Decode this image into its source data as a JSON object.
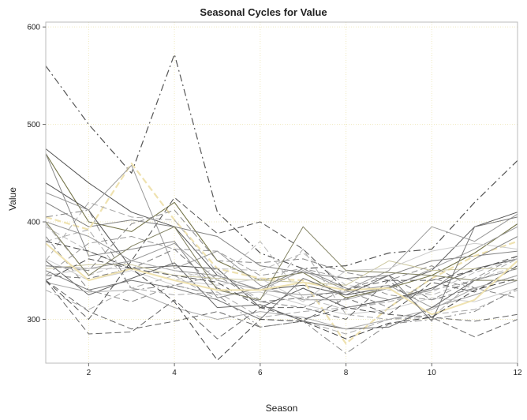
{
  "chart_data": {
    "type": "line",
    "title": "Seasonal Cycles for Value",
    "xlabel": "Season",
    "ylabel": "Value",
    "xlim": [
      1,
      12
    ],
    "ylim": [
      255,
      605
    ],
    "x_ticks": [
      2,
      4,
      6,
      8,
      10,
      12
    ],
    "y_ticks": [
      300,
      400,
      500,
      600
    ],
    "grid": true,
    "x": [
      1,
      2,
      3,
      4,
      5,
      6,
      7,
      8,
      9,
      10,
      11,
      12
    ],
    "colors": {
      "grid": "#efe9c0",
      "frame": "#bbbbbb",
      "highlight": "#efe2b0"
    },
    "series": [
      {
        "values": [
          560,
          500,
          450,
          572,
          410,
          368,
          352,
          355,
          368,
          372,
          420,
          463
        ],
        "color": "#555555",
        "dash": "dashdot",
        "width": 1.2
      },
      {
        "values": [
          470,
          400,
          390,
          420,
          360,
          340,
          348,
          322,
          332,
          345,
          368,
          398
        ],
        "color": "#75754a",
        "dash": "solid",
        "width": 1.1
      },
      {
        "values": [
          475,
          440,
          410,
          395,
          345,
          330,
          335,
          325,
          333,
          350,
          395,
          410
        ],
        "color": "#555555",
        "dash": "solid",
        "width": 1.0
      },
      {
        "values": [
          420,
          395,
          402,
          395,
          385,
          355,
          348,
          342,
          345,
          360,
          365,
          370
        ],
        "color": "#808080",
        "dash": "solid",
        "width": 1.0
      },
      {
        "values": [
          405,
          392,
          460,
          402,
          352,
          342,
          340,
          275,
          312,
          342,
          365,
          380
        ],
        "color": "#efe2b0",
        "dash": "dashed",
        "width": 2.2
      },
      {
        "values": [
          360,
          420,
          405,
          402,
          348,
          320,
          372,
          305,
          300,
          302,
          340,
          362
        ],
        "color": "#aaaaaa",
        "dash": "dashed",
        "width": 1.0
      },
      {
        "values": [
          440,
          412,
          352,
          355,
          352,
          312,
          332,
          312,
          320,
          332,
          352,
          362
        ],
        "color": "#555555",
        "dash": "solid",
        "width": 1.0
      },
      {
        "values": [
          430,
          412,
          458,
          352,
          370,
          335,
          320,
          320,
          332,
          352,
          372,
          395
        ],
        "color": "#999999",
        "dash": "solid",
        "width": 1.0
      },
      {
        "values": [
          395,
          370,
          352,
          340,
          352,
          350,
          368,
          335,
          330,
          325,
          340,
          355
        ],
        "color": "#bbbbbb",
        "dash": "dashed",
        "width": 1.0
      },
      {
        "values": [
          385,
          330,
          318,
          335,
          345,
          318,
          312,
          330,
          312,
          342,
          332,
          345
        ],
        "color": "#888888",
        "dash": "dashed",
        "width": 1.0
      },
      {
        "values": [
          400,
          385,
          360,
          378,
          340,
          330,
          325,
          328,
          335,
          312,
          325,
          340
        ],
        "color": "#999999",
        "dash": "solid",
        "width": 1.0
      },
      {
        "values": [
          380,
          392,
          332,
          345,
          320,
          300,
          298,
          285,
          300,
          305,
          310,
          330
        ],
        "color": "#aaaaaa",
        "dash": "dashed",
        "width": 1.0
      },
      {
        "values": [
          345,
          342,
          352,
          372,
          332,
          318,
          322,
          330,
          345,
          320,
          332,
          345
        ],
        "color": "#777777",
        "dash": "dashed",
        "width": 1.0
      },
      {
        "values": [
          362,
          340,
          350,
          335,
          325,
          328,
          315,
          305,
          310,
          322,
          318,
          332
        ],
        "color": "#cccccc",
        "dash": "solid",
        "width": 1.0
      },
      {
        "values": [
          340,
          308,
          290,
          298,
          308,
          292,
          298,
          322,
          305,
          302,
          282,
          300
        ],
        "color": "#666666",
        "dash": "dashed",
        "width": 1.0
      },
      {
        "values": [
          352,
          356,
          356,
          345,
          342,
          340,
          338,
          335,
          360,
          350,
          352,
          352
        ],
        "color": "#ccc8a0",
        "dash": "solid",
        "width": 1.0
      },
      {
        "values": [
          355,
          352,
          360,
          350,
          345,
          330,
          350,
          330,
          350,
          395,
          380,
          408
        ],
        "color": "#999999",
        "dash": "solid",
        "width": 1.0
      },
      {
        "values": [
          360,
          325,
          342,
          358,
          312,
          315,
          298,
          290,
          292,
          312,
          340,
          352
        ],
        "color": "#666666",
        "dash": "solid",
        "width": 1.0
      },
      {
        "values": [
          330,
          310,
          332,
          325,
          328,
          302,
          308,
          312,
          318,
          330,
          340,
          352
        ],
        "color": "#aaaaaa",
        "dash": "dashed",
        "width": 1.0
      },
      {
        "values": [
          345,
          352,
          352,
          340,
          335,
          342,
          318,
          350,
          352,
          370,
          378,
          372
        ],
        "color": "#cccccc",
        "dash": "solid",
        "width": 1.0
      },
      {
        "values": [
          338,
          328,
          330,
          312,
          300,
          308,
          302,
          290,
          300,
          310,
          332,
          345
        ],
        "color": "#aaaaaa",
        "dash": "solid",
        "width": 1.0
      },
      {
        "values": [
          470,
          365,
          372,
          380,
          322,
          332,
          352,
          332,
          320,
          330,
          362,
          385
        ],
        "color": "#888888",
        "dash": "solid",
        "width": 1.0
      },
      {
        "values": [
          340,
          285,
          287,
          320,
          280,
          312,
          312,
          300,
          340,
          302,
          298,
          305
        ],
        "color": "#666666",
        "dash": "dashed",
        "width": 1.0
      },
      {
        "values": [
          398,
          345,
          360,
          350,
          340,
          380,
          322,
          310,
          318,
          328,
          348,
          362
        ],
        "color": "#bbbbbb",
        "dash": "dashed",
        "width": 1.0
      },
      {
        "values": [
          400,
          345,
          375,
          395,
          330,
          320,
          395,
          350,
          348,
          345,
          340,
          340
        ],
        "color": "#808060",
        "dash": "solid",
        "width": 1.0
      },
      {
        "values": [
          345,
          378,
          385,
          372,
          370,
          345,
          352,
          342,
          325,
          320,
          342,
          365
        ],
        "color": "#999999",
        "dash": "dashed",
        "width": 1.0
      },
      {
        "values": [
          355,
          350,
          398,
          412,
          360,
          358,
          362,
          348,
          340,
          355,
          332,
          322
        ],
        "color": "#888888",
        "dash": "dashed",
        "width": 1.0
      },
      {
        "values": [
          340,
          362,
          352,
          345,
          338,
          312,
          300,
          312,
          305,
          338,
          328,
          355
        ],
        "color": "#555555",
        "dash": "dashed",
        "width": 1.0
      },
      {
        "values": [
          378,
          340,
          352,
          340,
          330,
          330,
          338,
          330,
          332,
          305,
          320,
          360
        ],
        "color": "#efe2b0",
        "dash": "solid",
        "width": 2.0
      },
      {
        "values": [
          350,
          330,
          340,
          332,
          320,
          300,
          342,
          325,
          345,
          298,
          395,
          405
        ],
        "color": "#777777",
        "dash": "solid",
        "width": 1.0
      },
      {
        "values": [
          340,
          300,
          360,
          425,
          388,
          400,
          372,
          330,
          340,
          340,
          350,
          365
        ],
        "color": "#555555",
        "dash": "dashed",
        "width": 1.0
      },
      {
        "values": [
          405,
          412,
          330,
          335,
          325,
          292,
          298,
          265,
          295,
          300,
          308,
          332
        ],
        "color": "#888888",
        "dash": "dashdot",
        "width": 1.0
      },
      {
        "values": [
          380,
          370,
          352,
          318,
          258,
          300,
          298,
          280,
          296,
          302,
          330,
          342
        ],
        "color": "#444444",
        "dash": "dashed",
        "width": 1.0
      }
    ]
  }
}
